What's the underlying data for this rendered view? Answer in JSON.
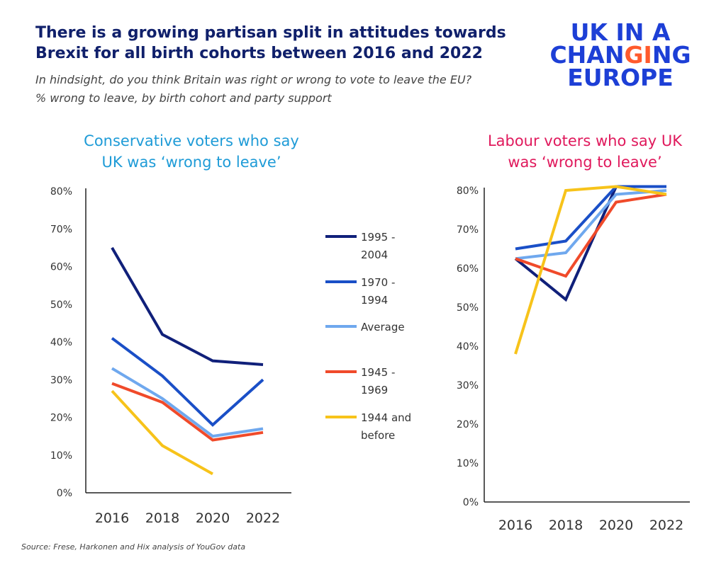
{
  "title_lines": [
    "There is a growing partisan split in attitudes towards",
    "Brexit for all birth cohorts between 2016 and 2022"
  ],
  "subtitle_lines": [
    "In hindsight, do you think Britain was right or wrong to vote to leave the EU?",
    "% wrong to leave, by birth cohort and party support"
  ],
  "logo": {
    "line1": "UK IN A",
    "line2_pre": "CHAN",
    "line2_accent": "G",
    "line2_mid": "I",
    "line2_post": "NG",
    "line3": "EUROPE",
    "color": "#1d3fd6",
    "accent_color": "#ff5a2c"
  },
  "source": "Source: Frese, Harkonen and Hix analysis of YouGov data",
  "legend": [
    {
      "lines": [
        "1995 -",
        "2004"
      ],
      "color": "#10207a"
    },
    {
      "lines": [
        "1970 -",
        "1994"
      ],
      "color": "#1a4fc7"
    },
    {
      "lines": [
        "Average"
      ],
      "color": "#6fa8ee"
    },
    {
      "lines": [
        "1945 -",
        "1969"
      ],
      "color": "#f04a2a"
    },
    {
      "lines": [
        "1944 and",
        "before"
      ],
      "color": "#f7c31a"
    }
  ],
  "chart_data": [
    {
      "type": "line",
      "title_lines": [
        "Conservative voters who say",
        "UK was  ‘wrong to leave’"
      ],
      "title_color": "#1e9bd7",
      "x": [
        "2016",
        "2018",
        "2020",
        "2022"
      ],
      "yticks": [
        "0%",
        "10%",
        "20%",
        "30%",
        "40%",
        "50%",
        "60%",
        "70%",
        "80%"
      ],
      "ylim": [
        0,
        80
      ],
      "series": [
        {
          "name": "1995 - 2004",
          "color": "#10207a",
          "values": [
            65,
            42,
            35,
            34
          ]
        },
        {
          "name": "1970 - 1994",
          "color": "#1a4fc7",
          "values": [
            41,
            31,
            18,
            30
          ]
        },
        {
          "name": "Average",
          "color": "#6fa8ee",
          "values": [
            33,
            25,
            15,
            17
          ]
        },
        {
          "name": "1945 - 1969",
          "color": "#f04a2a",
          "values": [
            29,
            24,
            14,
            16
          ]
        },
        {
          "name": "1944 and before",
          "color": "#f7c31a",
          "values": [
            27,
            12.5,
            5,
            null
          ]
        }
      ]
    },
    {
      "type": "line",
      "title_lines": [
        "Labour voters who say UK",
        "was ‘wrong to leave’"
      ],
      "title_color": "#e0195c",
      "x": [
        "2016",
        "2018",
        "2020",
        "2022"
      ],
      "yticks": [
        "0%",
        "10%",
        "20%",
        "30%",
        "40%",
        "50%",
        "60%",
        "70%",
        "80%"
      ],
      "ylim": [
        0,
        80
      ],
      "series": [
        {
          "name": "1995 - 2004",
          "color": "#10207a",
          "values": [
            62.5,
            52,
            81,
            81
          ]
        },
        {
          "name": "1970 - 1994",
          "color": "#1a4fc7",
          "values": [
            65,
            67,
            81,
            81
          ]
        },
        {
          "name": "Average",
          "color": "#6fa8ee",
          "values": [
            62.5,
            64,
            79,
            80
          ]
        },
        {
          "name": "1945 - 1969",
          "color": "#f04a2a",
          "values": [
            62.5,
            58,
            77,
            79
          ]
        },
        {
          "name": "1944 and before",
          "color": "#f7c31a",
          "values": [
            38,
            80,
            81,
            79
          ]
        }
      ]
    }
  ]
}
